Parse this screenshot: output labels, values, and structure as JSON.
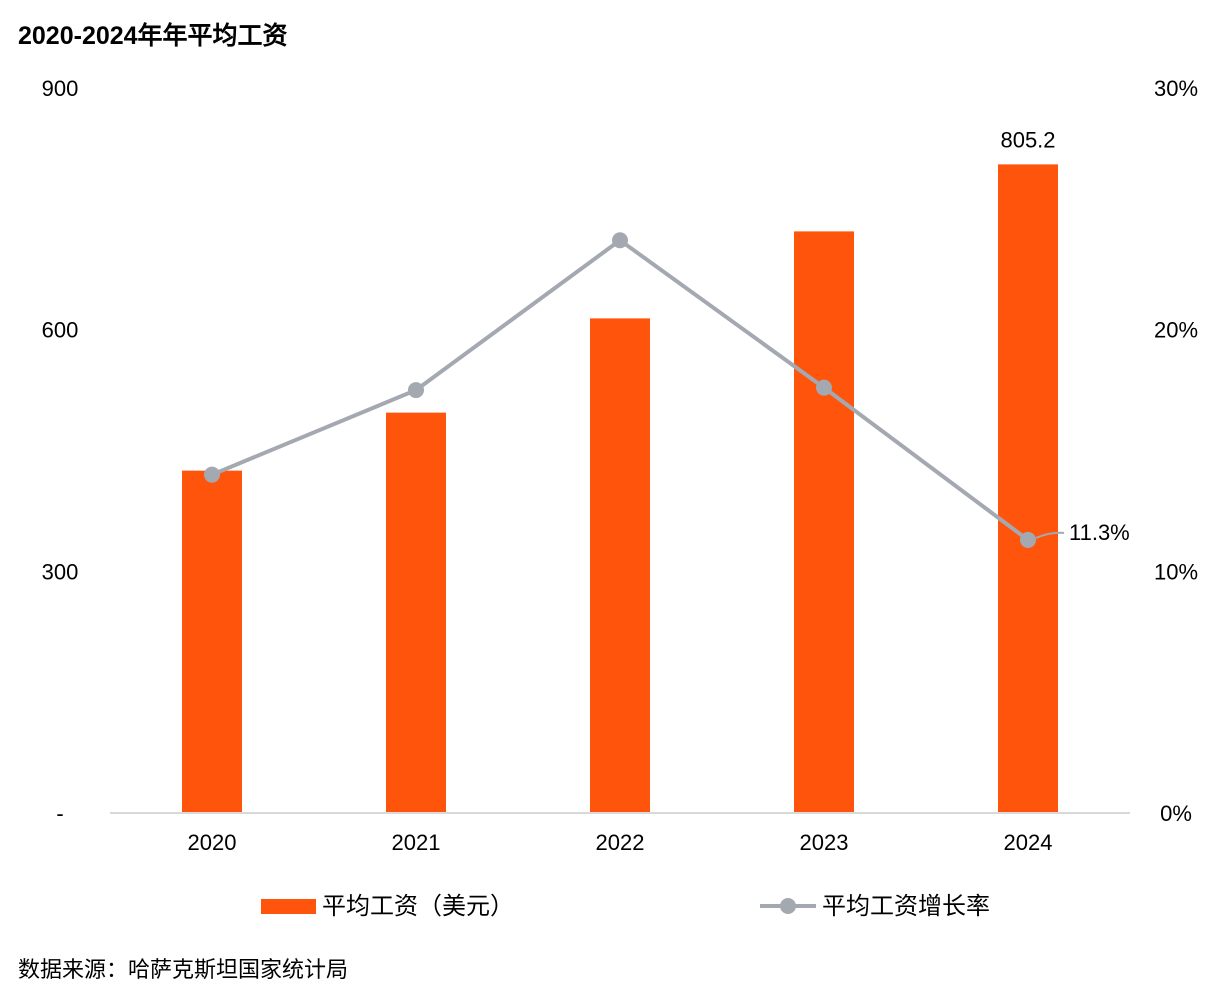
{
  "chart_data": {
    "type": "bar",
    "title": "2020-2024年年平均工资",
    "categories": [
      "2020",
      "2021",
      "2022",
      "2023",
      "2024"
    ],
    "series": [
      {
        "name": "平均工资（美元）",
        "type": "bar",
        "axis": "left",
        "color": "#FF540C",
        "values": [
          425,
          497,
          614,
          722,
          805.2
        ]
      },
      {
        "name": "平均工资增长率",
        "type": "line",
        "axis": "right",
        "color": "#A4A8B1",
        "unit": "%",
        "values": [
          14.0,
          17.5,
          23.7,
          17.6,
          11.3
        ]
      }
    ],
    "y_left": {
      "min": 0,
      "max": 900,
      "ticks": [
        0,
        300,
        600,
        900
      ],
      "tick_labels": [
        "-",
        "300",
        "600",
        "900"
      ]
    },
    "y_right": {
      "min": 0,
      "max": 30,
      "ticks": [
        0,
        10,
        20,
        30
      ],
      "tick_labels": [
        "0%",
        "10%",
        "20%",
        "30%"
      ]
    },
    "data_labels": [
      {
        "series": 0,
        "index": 4,
        "text": "805.2"
      },
      {
        "series": 1,
        "index": 4,
        "text": "11.3%"
      }
    ],
    "grid": false,
    "legend_position": "bottom"
  },
  "footer": {
    "source": "数据来源：哈萨克斯坦国家统计局"
  }
}
